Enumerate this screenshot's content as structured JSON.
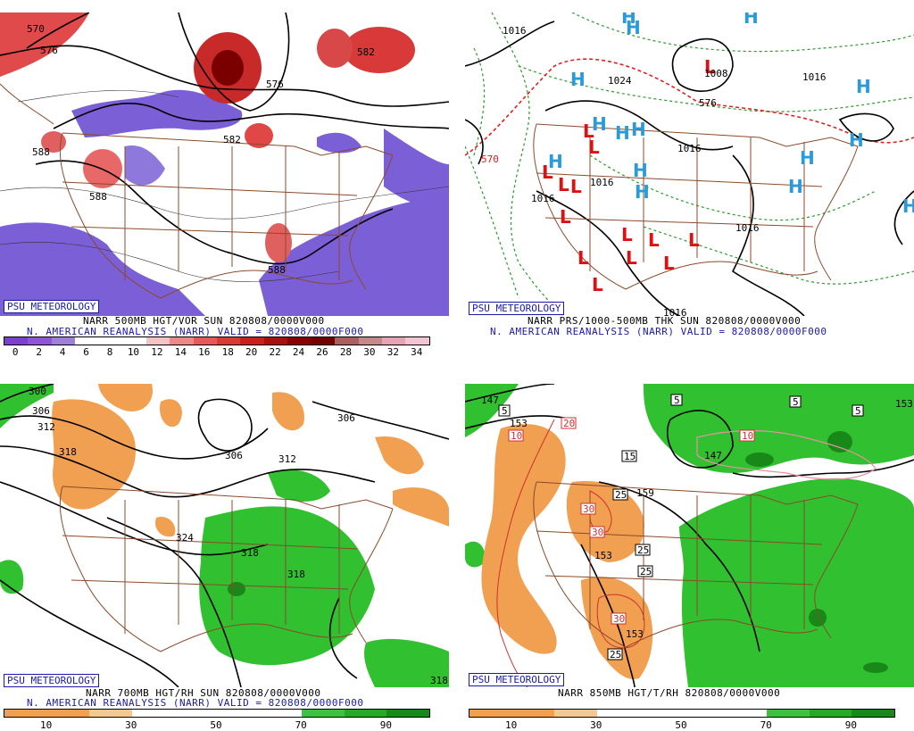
{
  "panels": [
    {
      "id": "p1",
      "badge": "PSU METEOROLOGY",
      "caption1": "NARR 500MB HGT/VOR SUN 820808/0000V000",
      "caption2": "N. AMERICAN REANALYSIS (NARR) VALID = 820808/0000F000",
      "contour_labels": [
        "570",
        "576",
        "588",
        "576",
        "582",
        "582",
        "588",
        "588"
      ],
      "scale_ticks": [
        "0",
        "2",
        "4",
        "6",
        "8",
        "10",
        "12",
        "14",
        "16",
        "18",
        "20",
        "22",
        "24",
        "26",
        "28",
        "30",
        "32",
        "34"
      ],
      "scale_colors": [
        "#7b3fd1",
        "#8e55d9",
        "#a07fd8",
        "#ffffff",
        "#ffffff",
        "#ffffff",
        "#f4c3c3",
        "#ee8888",
        "#e85858",
        "#d83a3a",
        "#c82020",
        "#a81010",
        "#8a0000",
        "#740000",
        "#a86060",
        "#c38a8a",
        "#e4a4b6",
        "#f4c4d4"
      ]
    },
    {
      "id": "p2",
      "badge": "PSU METEOROLOGY",
      "caption1": "NARR PRS/1000-500MB THK SUN 820808/0000V000",
      "caption2": "N. AMERICAN REANALYSIS (NARR) VALID = 820808/0000F000",
      "contour_labels": [
        "1016",
        "1024",
        "570",
        "1008",
        "576",
        "1016",
        "1016",
        "1016",
        "1016",
        "1016",
        "1016"
      ],
      "high_symbol": "H",
      "low_symbol": "L"
    },
    {
      "id": "p3",
      "badge": "PSU METEOROLOGY",
      "caption1": "NARR 700MB HGT/RH SUN 820808/0000V000",
      "caption2": "N. AMERICAN REANALYSIS (NARR) VALID = 820808/0000F000",
      "contour_labels": [
        "300",
        "306",
        "312",
        "318",
        "306",
        "312",
        "306",
        "324",
        "318",
        "318",
        "318"
      ],
      "scale_ticks": [
        "10",
        "30",
        "50",
        "70",
        "90"
      ],
      "scale_colors": [
        "#f0a050",
        "#f0a050",
        "#f6c890",
        "#ffffff",
        "#ffffff",
        "#ffffff",
        "#ffffff",
        "#40c040",
        "#28a828",
        "#188818"
      ]
    },
    {
      "id": "p4",
      "badge": "PSU METEOROLOGY",
      "caption1": "NARR 850MB HGT/T/RH 820808/0000V000",
      "contour_labels": [
        "147",
        "153",
        "147",
        "159",
        "153",
        "153",
        "153"
      ],
      "temp_boxes": [
        "5",
        "10",
        "20",
        "15",
        "5",
        "5",
        "5",
        "10",
        "25",
        "30",
        "30",
        "25",
        "25",
        "30",
        "25"
      ],
      "scale_ticks": [
        "10",
        "30",
        "50",
        "70",
        "90"
      ],
      "scale_colors": [
        "#f0a050",
        "#f0a050",
        "#f6c890",
        "#ffffff",
        "#ffffff",
        "#ffffff",
        "#ffffff",
        "#40c040",
        "#28a828",
        "#188818"
      ]
    }
  ]
}
